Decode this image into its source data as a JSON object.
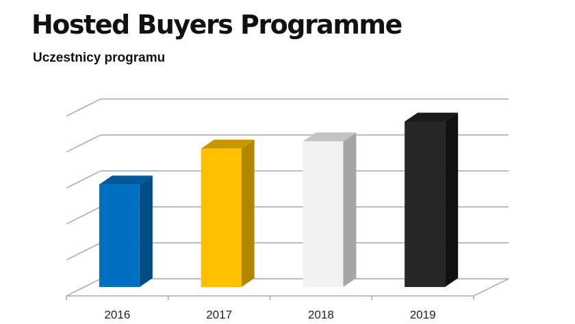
{
  "header": {
    "title": "Hosted Buyers Programme",
    "subtitle": "Uczestnicy programu"
  },
  "chart_data": {
    "type": "bar",
    "categories": [
      "2016",
      "2017",
      "2018",
      "2019"
    ],
    "values": [
      2.85,
      3.85,
      4.05,
      4.6
    ],
    "ylim": [
      0,
      5
    ],
    "grid": true,
    "legend": "none",
    "colors": [
      {
        "front": "#0070C0",
        "side": "#024D86",
        "top": "#02589A"
      },
      {
        "front": "#FFC000",
        "side": "#B38600",
        "top": "#C99700"
      },
      {
        "front": "#F2F2F2",
        "side": "#A6A6A6",
        "top": "#C4C4C4"
      },
      {
        "front": "#262626",
        "side": "#111111",
        "top": "#1A1A1A"
      }
    ],
    "grid_color": "#A6A6A6"
  }
}
